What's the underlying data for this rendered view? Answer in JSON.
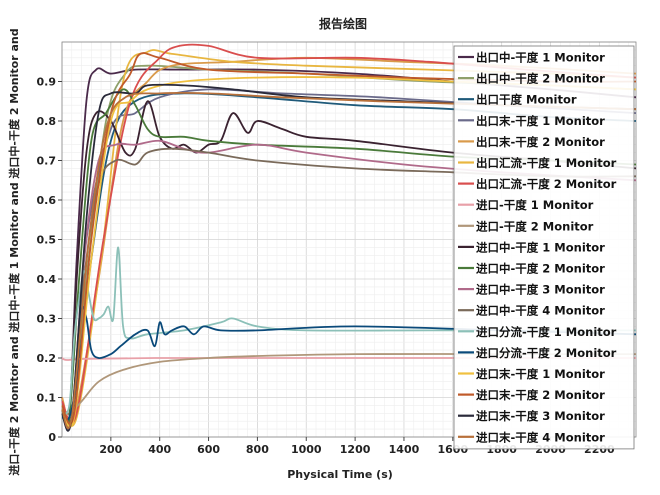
{
  "chart_data": {
    "type": "line",
    "title": "报告绘图",
    "xlabel": "Physical Time (s)",
    "ylabel": "进口-干度 2 Monitor and 进口中-干度 1 Monitor and 进口中-干度 2 Monitor and",
    "xlim": [
      0,
      2350
    ],
    "ylim": [
      0,
      1.0
    ],
    "xticks": [
      200,
      400,
      600,
      800,
      1000,
      1200,
      1400,
      1600,
      1800,
      2000,
      2200
    ],
    "yticks": [
      0,
      0.1,
      0.2,
      0.3,
      0.4,
      0.5,
      0.6,
      0.7,
      0.8,
      0.9
    ],
    "grid": true,
    "legend_position": "right",
    "series": [
      {
        "name": "出口中-干度 1 Monitor",
        "color": "#4a2a4a",
        "points": [
          [
            0,
            0.1
          ],
          [
            30,
            0.05
          ],
          [
            60,
            0.45
          ],
          [
            100,
            0.85
          ],
          [
            140,
            0.93
          ],
          [
            200,
            0.92
          ],
          [
            300,
            0.93
          ],
          [
            500,
            0.93
          ],
          [
            800,
            0.93
          ],
          [
            1200,
            0.92
          ],
          [
            1600,
            0.9
          ],
          [
            2000,
            0.88
          ],
          [
            2350,
            0.86
          ]
        ]
      },
      {
        "name": "出口中-干度 2 Monitor",
        "color": "#8fa06a",
        "points": [
          [
            0,
            0.08
          ],
          [
            40,
            0.06
          ],
          [
            100,
            0.4
          ],
          [
            180,
            0.8
          ],
          [
            260,
            0.92
          ],
          [
            350,
            0.94
          ],
          [
            600,
            0.93
          ],
          [
            1000,
            0.92
          ],
          [
            1500,
            0.9
          ],
          [
            2000,
            0.89
          ],
          [
            2350,
            0.88
          ]
        ]
      },
      {
        "name": "出口干度 Monitor",
        "color": "#1f5a7a",
        "points": [
          [
            0,
            0.06
          ],
          [
            40,
            0.05
          ],
          [
            120,
            0.45
          ],
          [
            200,
            0.75
          ],
          [
            300,
            0.85
          ],
          [
            500,
            0.87
          ],
          [
            800,
            0.86
          ],
          [
            1200,
            0.84
          ],
          [
            1600,
            0.83
          ],
          [
            2000,
            0.81
          ],
          [
            2350,
            0.8
          ]
        ]
      },
      {
        "name": "出口末-干度 1 Monitor",
        "color": "#6a6a8a",
        "points": [
          [
            0,
            0.07
          ],
          [
            40,
            0.05
          ],
          [
            100,
            0.5
          ],
          [
            200,
            0.78
          ],
          [
            300,
            0.82
          ],
          [
            400,
            0.86
          ],
          [
            600,
            0.88
          ],
          [
            900,
            0.87
          ],
          [
            1300,
            0.86
          ],
          [
            1800,
            0.84
          ],
          [
            2350,
            0.82
          ]
        ]
      },
      {
        "name": "出口末-干度 2 Monitor",
        "color": "#d99a4a",
        "points": [
          [
            0,
            0.1
          ],
          [
            50,
            0.05
          ],
          [
            150,
            0.4
          ],
          [
            250,
            0.8
          ],
          [
            350,
            0.9
          ],
          [
            450,
            0.94
          ],
          [
            700,
            0.95
          ],
          [
            1000,
            0.96
          ],
          [
            1400,
            0.95
          ],
          [
            1800,
            0.94
          ],
          [
            2350,
            0.92
          ]
        ]
      },
      {
        "name": "出口汇流-干度 1 Monitor",
        "color": "#e8b640",
        "points": [
          [
            0,
            0.08
          ],
          [
            60,
            0.05
          ],
          [
            160,
            0.45
          ],
          [
            250,
            0.9
          ],
          [
            350,
            0.975
          ],
          [
            450,
            0.97
          ],
          [
            700,
            0.95
          ],
          [
            1000,
            0.94
          ],
          [
            1500,
            0.93
          ],
          [
            2000,
            0.92
          ],
          [
            2350,
            0.91
          ]
        ]
      },
      {
        "name": "出口汇流-干度 2 Monitor",
        "color": "#d94e4e",
        "points": [
          [
            0,
            0.09
          ],
          [
            60,
            0.06
          ],
          [
            170,
            0.5
          ],
          [
            280,
            0.85
          ],
          [
            400,
            0.96
          ],
          [
            480,
            0.99
          ],
          [
            600,
            0.99
          ],
          [
            800,
            0.96
          ],
          [
            1200,
            0.96
          ],
          [
            1500,
            0.95
          ],
          [
            1900,
            0.93
          ],
          [
            2350,
            0.91
          ]
        ]
      },
      {
        "name": "进口-干度 1 Monitor",
        "color": "#e8a0a8",
        "points": [
          [
            0,
            0.2
          ],
          [
            20,
            0.195
          ],
          [
            100,
            0.198
          ],
          [
            400,
            0.2
          ],
          [
            800,
            0.2
          ],
          [
            1200,
            0.2
          ],
          [
            1800,
            0.2
          ],
          [
            2350,
            0.2
          ]
        ]
      },
      {
        "name": "进口-干度 2 Monitor",
        "color": "#b0977a",
        "points": [
          [
            0,
            0.06
          ],
          [
            30,
            0.06
          ],
          [
            80,
            0.09
          ],
          [
            150,
            0.14
          ],
          [
            250,
            0.17
          ],
          [
            400,
            0.19
          ],
          [
            600,
            0.2
          ],
          [
            800,
            0.205
          ],
          [
            1200,
            0.21
          ],
          [
            1800,
            0.21
          ],
          [
            2350,
            0.21
          ]
        ]
      },
      {
        "name": "进口中-干度 1 Monitor",
        "color": "#3a2230",
        "points": [
          [
            0,
            0.07
          ],
          [
            30,
            0.05
          ],
          [
            60,
            0.4
          ],
          [
            100,
            0.72
          ],
          [
            140,
            0.82
          ],
          [
            200,
            0.8
          ],
          [
            260,
            0.72
          ],
          [
            300,
            0.73
          ],
          [
            350,
            0.85
          ],
          [
            400,
            0.76
          ],
          [
            450,
            0.73
          ],
          [
            500,
            0.74
          ],
          [
            550,
            0.72
          ],
          [
            600,
            0.74
          ],
          [
            650,
            0.75
          ],
          [
            700,
            0.82
          ],
          [
            760,
            0.77
          ],
          [
            800,
            0.8
          ],
          [
            900,
            0.78
          ],
          [
            1000,
            0.76
          ],
          [
            1200,
            0.75
          ],
          [
            1600,
            0.72
          ],
          [
            2000,
            0.7
          ],
          [
            2350,
            0.68
          ]
        ]
      },
      {
        "name": "进口中-干度 2 Monitor",
        "color": "#4a7a3a",
        "points": [
          [
            0,
            0.06
          ],
          [
            30,
            0.05
          ],
          [
            70,
            0.4
          ],
          [
            120,
            0.75
          ],
          [
            180,
            0.82
          ],
          [
            250,
            0.88
          ],
          [
            300,
            0.84
          ],
          [
            350,
            0.78
          ],
          [
            400,
            0.76
          ],
          [
            500,
            0.76
          ],
          [
            600,
            0.75
          ],
          [
            800,
            0.74
          ],
          [
            1200,
            0.73
          ],
          [
            1600,
            0.71
          ],
          [
            2000,
            0.7
          ],
          [
            2350,
            0.69
          ]
        ]
      },
      {
        "name": "进口中-干度 3 Monitor",
        "color": "#b06a8a",
        "points": [
          [
            0,
            0.06
          ],
          [
            40,
            0.05
          ],
          [
            90,
            0.45
          ],
          [
            150,
            0.7
          ],
          [
            220,
            0.74
          ],
          [
            300,
            0.74
          ],
          [
            400,
            0.75
          ],
          [
            500,
            0.73
          ],
          [
            600,
            0.72
          ],
          [
            800,
            0.74
          ],
          [
            1000,
            0.72
          ],
          [
            1400,
            0.69
          ],
          [
            1800,
            0.67
          ],
          [
            2350,
            0.65
          ]
        ]
      },
      {
        "name": "进口中-干度 4 Monitor",
        "color": "#7a6a5a",
        "points": [
          [
            0,
            0.06
          ],
          [
            40,
            0.05
          ],
          [
            90,
            0.4
          ],
          [
            150,
            0.64
          ],
          [
            220,
            0.7
          ],
          [
            300,
            0.69
          ],
          [
            350,
            0.72
          ],
          [
            450,
            0.73
          ],
          [
            600,
            0.72
          ],
          [
            800,
            0.7
          ],
          [
            1200,
            0.68
          ],
          [
            1600,
            0.67
          ],
          [
            2000,
            0.66
          ],
          [
            2350,
            0.66
          ]
        ]
      },
      {
        "name": "进口分流-干度 1 Monitor",
        "color": "#8cc0b8",
        "points": [
          [
            0,
            0.06
          ],
          [
            30,
            0.08
          ],
          [
            50,
            0.25
          ],
          [
            70,
            0.35
          ],
          [
            90,
            0.42
          ],
          [
            110,
            0.36
          ],
          [
            130,
            0.3
          ],
          [
            150,
            0.3
          ],
          [
            170,
            0.31
          ],
          [
            190,
            0.33
          ],
          [
            210,
            0.3
          ],
          [
            230,
            0.48
          ],
          [
            250,
            0.28
          ],
          [
            280,
            0.25
          ],
          [
            350,
            0.26
          ],
          [
            500,
            0.27
          ],
          [
            650,
            0.29
          ],
          [
            700,
            0.3
          ],
          [
            800,
            0.28
          ],
          [
            1000,
            0.27
          ],
          [
            1500,
            0.27
          ],
          [
            2000,
            0.27
          ],
          [
            2350,
            0.27
          ]
        ]
      },
      {
        "name": "进口分流-干度 2 Monitor",
        "color": "#0a4a7a",
        "points": [
          [
            0,
            0.05
          ],
          [
            30,
            0.05
          ],
          [
            60,
            0.15
          ],
          [
            80,
            0.32
          ],
          [
            100,
            0.3
          ],
          [
            120,
            0.22
          ],
          [
            150,
            0.2
          ],
          [
            200,
            0.21
          ],
          [
            240,
            0.23
          ],
          [
            300,
            0.26
          ],
          [
            350,
            0.27
          ],
          [
            380,
            0.23
          ],
          [
            400,
            0.29
          ],
          [
            420,
            0.26
          ],
          [
            450,
            0.27
          ],
          [
            500,
            0.28
          ],
          [
            540,
            0.26
          ],
          [
            580,
            0.28
          ],
          [
            650,
            0.27
          ],
          [
            800,
            0.27
          ],
          [
            1200,
            0.28
          ],
          [
            1800,
            0.27
          ],
          [
            2350,
            0.26
          ]
        ]
      },
      {
        "name": "进口末-干度 1 Monitor",
        "color": "#f0c040",
        "points": [
          [
            0,
            0.07
          ],
          [
            50,
            0.05
          ],
          [
            120,
            0.45
          ],
          [
            200,
            0.8
          ],
          [
            280,
            0.85
          ],
          [
            350,
            0.88
          ],
          [
            500,
            0.9
          ],
          [
            800,
            0.91
          ],
          [
            1200,
            0.91
          ],
          [
            1600,
            0.9
          ],
          [
            2000,
            0.89
          ],
          [
            2350,
            0.88
          ]
        ]
      },
      {
        "name": "进口末-干度 2 Monitor",
        "color": "#c05a2a",
        "points": [
          [
            0,
            0.08
          ],
          [
            50,
            0.06
          ],
          [
            120,
            0.5
          ],
          [
            200,
            0.82
          ],
          [
            280,
            0.92
          ],
          [
            320,
            0.97
          ],
          [
            400,
            0.96
          ],
          [
            600,
            0.93
          ],
          [
            1000,
            0.92
          ],
          [
            1400,
            0.91
          ],
          [
            2000,
            0.9
          ],
          [
            2350,
            0.9
          ]
        ]
      },
      {
        "name": "进口末-干度 3 Monitor",
        "color": "#2a2a3a",
        "points": [
          [
            0,
            0.06
          ],
          [
            40,
            0.05
          ],
          [
            100,
            0.55
          ],
          [
            150,
            0.82
          ],
          [
            200,
            0.87
          ],
          [
            300,
            0.87
          ],
          [
            350,
            0.89
          ],
          [
            500,
            0.89
          ],
          [
            700,
            0.88
          ],
          [
            1000,
            0.86
          ],
          [
            1400,
            0.85
          ],
          [
            1800,
            0.84
          ],
          [
            2350,
            0.83
          ]
        ]
      },
      {
        "name": "进口末-干度 4 Monitor",
        "color": "#b8703a",
        "points": [
          [
            0,
            0.07
          ],
          [
            40,
            0.05
          ],
          [
            110,
            0.5
          ],
          [
            180,
            0.78
          ],
          [
            260,
            0.86
          ],
          [
            400,
            0.87
          ],
          [
            600,
            0.87
          ],
          [
            900,
            0.86
          ],
          [
            1300,
            0.85
          ],
          [
            1800,
            0.84
          ],
          [
            2350,
            0.83
          ]
        ]
      }
    ]
  }
}
